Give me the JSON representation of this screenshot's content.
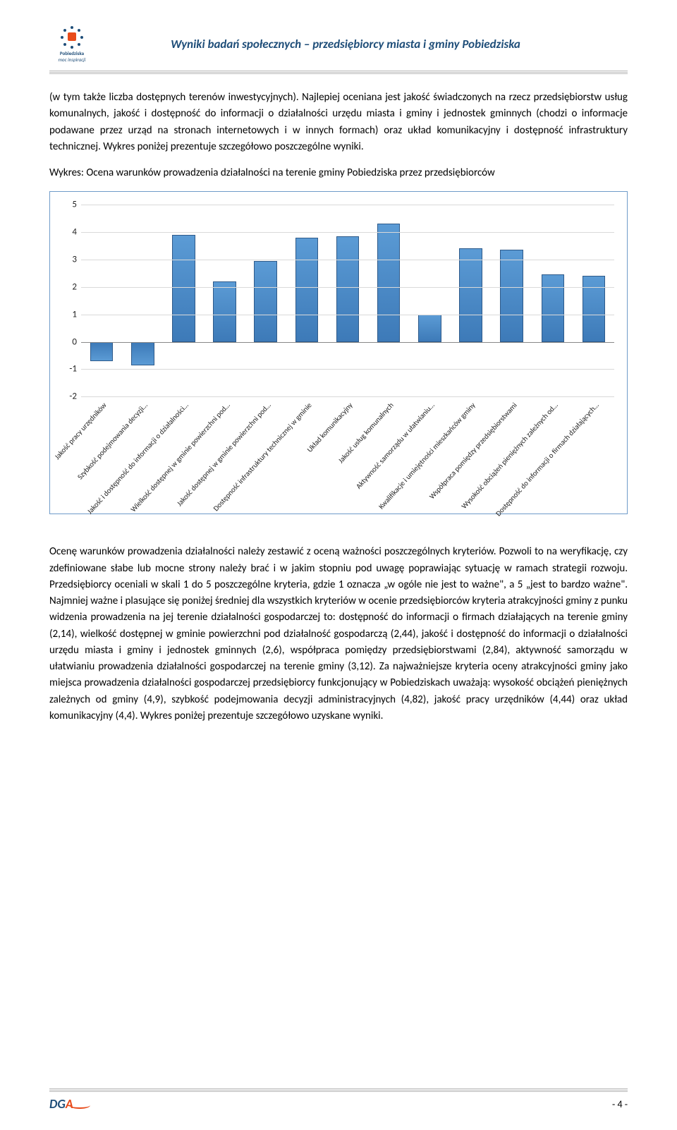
{
  "header": {
    "logo_name": "Pobiedziska",
    "logo_tagline": "moc inspiracji",
    "title": "Wyniki badań społecznych – przedsiębiorcy miasta i gminy Pobiedziska"
  },
  "paragraphs": {
    "p1": "(w tym także liczba dostępnych terenów inwestycyjnych). Najlepiej oceniana jest jakość świadczonych na rzecz przedsiębiorstw usług komunalnych, jakość i dostępność do informacji o działalności urzędu miasta i gminy i jednostek gminnych (chodzi o informacje podawane przez urząd na stronach internetowych i w innych formach) oraz układ komunikacyjny i dostępność infrastruktury technicznej. Wykres poniżej prezentuje szczegółowo poszczególne wyniki.",
    "p2": "Wykres: Ocena warunków prowadzenia działalności na terenie gminy Pobiedziska przez przedsiębiorców",
    "p3": "Ocenę warunków prowadzenia działalności należy zestawić z oceną ważności poszczególnych kryteriów. Pozwoli to na weryfikację, czy zdefiniowane słabe lub mocne strony należy brać i w jakim stopniu pod uwagę poprawiając sytuację w ramach strategii rozwoju. Przedsiębiorcy oceniali w skali 1 do 5 poszczególne kryteria, gdzie 1 oznacza „w ogóle nie jest to ważne\", a 5 „jest to bardzo ważne\". Najmniej ważne i plasujące się poniżej średniej dla wszystkich kryteriów w ocenie przedsiębiorców kryteria atrakcyjności gminy z punku widzenia prowadzenia na jej terenie działalności gospodarczej to: dostępność do informacji o firmach działających na terenie gminy (2,14), wielkość dostępnej w gminie powierzchni pod działalność gospodarczą (2,44), jakość i dostępność do informacji o działalności urzędu miasta i gminy i jednostek gminnych (2,6), współpraca pomiędzy przedsiębiorstwami (2,84), aktywność samorządu w ułatwianiu prowadzenia działalności gospodarczej na terenie gminy (3,12). Za najważniejsze kryteria oceny atrakcyjności gminy jako miejsca prowadzenia działalności gospodarczej przedsiębiorcy funkcjonujący w Pobiedziskach uważają: wysokość obciążeń pieniężnych zależnych od gminy (4,9), szybkość podejmowania decyzji administracyjnych (4,82), jakość pracy urzędników (4,44) oraz układ komunikacyjny (4,4). Wykres poniżej prezentuje szczegółowo uzyskane wyniki."
  },
  "chart": {
    "type": "bar",
    "ylim_min": -2,
    "ylim_max": 5,
    "ytick_step": 1,
    "grid_color": "#d9d9d9",
    "bar_color": "#4a8bc7",
    "border_color": "#6f9bc9",
    "categories": [
      "Jakość pracy urzędników",
      "Szybkość podejmowania decyzji…",
      "Jakość i dostępność do informacji o działalności…",
      "Wielkość dostępnej w gminie powierzchni pod…",
      "Jakość dostępnej w gminie powierzchni pod…",
      "Dostępność infrastruktury technicznej w gminie",
      "Układ komunikacyjny",
      "Jakość usług komunalnych",
      "Aktywność samorządu w ułatwianiu…",
      "Kwalifikacje i umiejętności mieszkańców gminy",
      "Współpraca pomiędzy przedsiębiorstwami",
      "Wysokość obciążeń pieniężnych zależnych od…",
      "Dostępność do informacji o firmach działających…"
    ],
    "values": [
      -0.7,
      -0.85,
      3.9,
      2.2,
      2.95,
      3.8,
      3.85,
      4.3,
      1.0,
      3.4,
      3.35,
      2.45,
      2.4
    ]
  },
  "footer": {
    "logo": "DGA",
    "page": "- 4 -"
  }
}
